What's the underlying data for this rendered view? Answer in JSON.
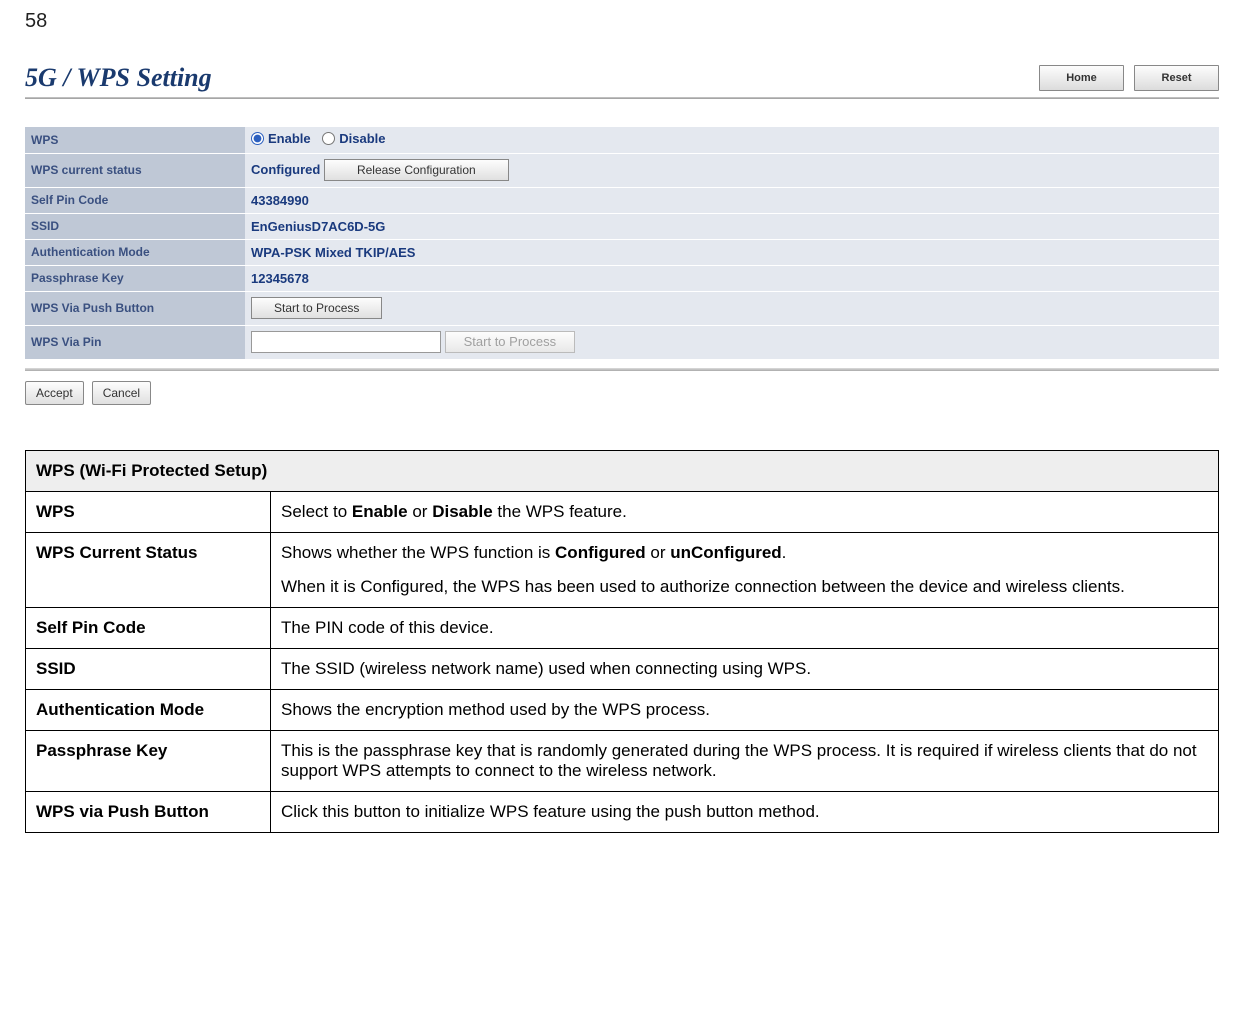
{
  "page_number": "58",
  "header": {
    "title": "5G / WPS Setting",
    "home_btn": "Home",
    "reset_btn": "Reset"
  },
  "config": {
    "rows": {
      "wps": {
        "label": "WPS",
        "opt_enable": "Enable",
        "opt_disable": "Disable"
      },
      "status": {
        "label": "WPS current status",
        "value": "Configured",
        "btn": "Release Configuration"
      },
      "selfpin": {
        "label": "Self Pin Code",
        "value": "43384990"
      },
      "ssid": {
        "label": "SSID",
        "value": "EnGeniusD7AC6D-5G"
      },
      "authmode": {
        "label": "Authentication Mode",
        "value": "WPA-PSK Mixed TKIP/AES"
      },
      "passkey": {
        "label": "Passphrase Key",
        "value": "12345678"
      },
      "pushbtn": {
        "label": "WPS Via Push Button",
        "btn": "Start to Process"
      },
      "viapin": {
        "label": "WPS Via Pin",
        "btn": "Start to Process"
      }
    }
  },
  "footer_buttons": {
    "accept": "Accept",
    "cancel": "Cancel"
  },
  "doc": {
    "header": "WPS (Wi-Fi Protected Setup)",
    "rows": [
      {
        "label": "WPS",
        "desc_html": "Select to <b>Enable</b> or <b>Disable</b> the WPS feature."
      },
      {
        "label": "WPS Current Status",
        "desc_html": "<p>Shows whether the WPS function is <b>Configured</b> or <b>unConfigured</b>.</p><p>When it is Configured, the WPS has been used to authorize connection between the device and wireless clients.</p>"
      },
      {
        "label": "Self Pin Code",
        "desc_html": "The PIN code of this device."
      },
      {
        "label": "SSID",
        "desc_html": "The SSID (wireless network name) used when connecting using WPS."
      },
      {
        "label": "Authentication Mode",
        "desc_html": "Shows the encryption method used by the WPS process."
      },
      {
        "label": "Passphrase Key",
        "desc_html": "This is the passphrase key that is randomly generated during the WPS process. It is required if wireless clients that do not support WPS attempts to connect to the wireless network."
      },
      {
        "label": "WPS via Push Button",
        "desc_html": "Click this button to initialize WPS feature using the push button method."
      }
    ]
  }
}
